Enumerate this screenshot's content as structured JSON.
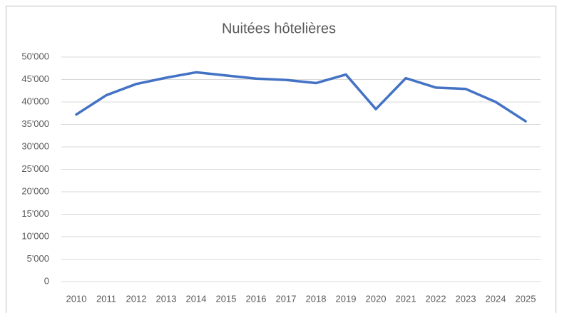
{
  "chart_data": {
    "type": "line",
    "title": "Nuitées hôtelières",
    "categories": [
      "2010",
      "2011",
      "2012",
      "2013",
      "2014",
      "2015",
      "2016",
      "2017",
      "2018",
      "2019",
      "2020",
      "2021",
      "2022",
      "2023",
      "2024",
      "2025"
    ],
    "values": [
      37200,
      41500,
      44000,
      45400,
      46600,
      45900,
      45200,
      44900,
      44200,
      46100,
      38400,
      45300,
      43200,
      42900,
      40000,
      35700
    ],
    "color": "#4472c4",
    "ylim": [
      0,
      50000
    ],
    "yticks": [
      0,
      {
        "value": 5000,
        "label": "5'000"
      },
      {
        "value": 10000,
        "label": "10'000"
      },
      {
        "value": 15000,
        "label": "15'000"
      },
      {
        "value": 20000,
        "label": "20'000"
      },
      {
        "value": 25000,
        "label": "25'000"
      },
      {
        "value": 30000,
        "label": "30'000"
      },
      {
        "value": 35000,
        "label": "35'000"
      },
      {
        "value": 40000,
        "label": "40'000"
      },
      {
        "value": 45000,
        "label": "45'000"
      },
      {
        "value": 50000,
        "label": "50'000"
      }
    ],
    "grid": true
  }
}
